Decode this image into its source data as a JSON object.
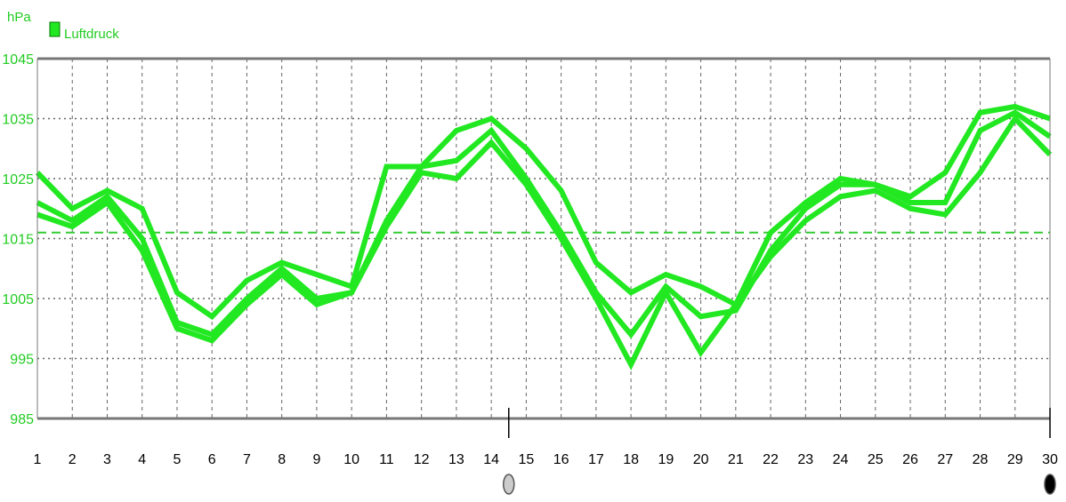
{
  "chart_data": {
    "type": "line",
    "unit_label": "hPa",
    "legend": {
      "label": "Luftdruck",
      "placement": "top-left"
    },
    "colors": {
      "series": "#22e822",
      "axis_text": "#22cc22",
      "reference": "#33cc33",
      "grid": "#666666"
    },
    "ylim": [
      985,
      1045
    ],
    "yticks": [
      985,
      995,
      1005,
      1015,
      1025,
      1035,
      1045
    ],
    "x": [
      1,
      2,
      3,
      4,
      5,
      6,
      7,
      8,
      9,
      10,
      11,
      12,
      13,
      14,
      15,
      16,
      17,
      18,
      19,
      20,
      21,
      22,
      23,
      24,
      25,
      26,
      27,
      28,
      29,
      30
    ],
    "reference_line": 1016,
    "grid": true,
    "markers": [
      {
        "x": 14.5,
        "shape": "circle-grey"
      },
      {
        "x": 30,
        "shape": "circle-black"
      }
    ],
    "series": [
      {
        "values": [
          1026,
          1020,
          1023,
          1020,
          1006,
          1002,
          1008,
          1011,
          1009,
          1007,
          1027,
          1027,
          1033,
          1035,
          1030,
          1023,
          1011,
          1006,
          1009,
          1007,
          1004,
          1016,
          1021,
          1025,
          1024,
          1022,
          1026,
          1036,
          1037,
          1035
        ]
      },
      {
        "values": [
          1021,
          1018,
          1022,
          1015,
          1001,
          999,
          1005,
          1010,
          1005,
          1006,
          1018,
          1027,
          1028,
          1033,
          1025,
          1016,
          1006,
          999,
          1007,
          1002,
          1003,
          1013,
          1020,
          1024,
          1024,
          1021,
          1021,
          1033,
          1036,
          1032
        ]
      },
      {
        "values": [
          1019,
          1017,
          1021,
          1013,
          1000,
          998,
          1004,
          1009,
          1004,
          1006,
          1017,
          1026,
          1025,
          1031,
          1024,
          1015,
          1005,
          994,
          1006,
          996,
          1004,
          1012,
          1018,
          1022,
          1023,
          1020,
          1019,
          1026,
          1035,
          1029
        ]
      }
    ]
  }
}
